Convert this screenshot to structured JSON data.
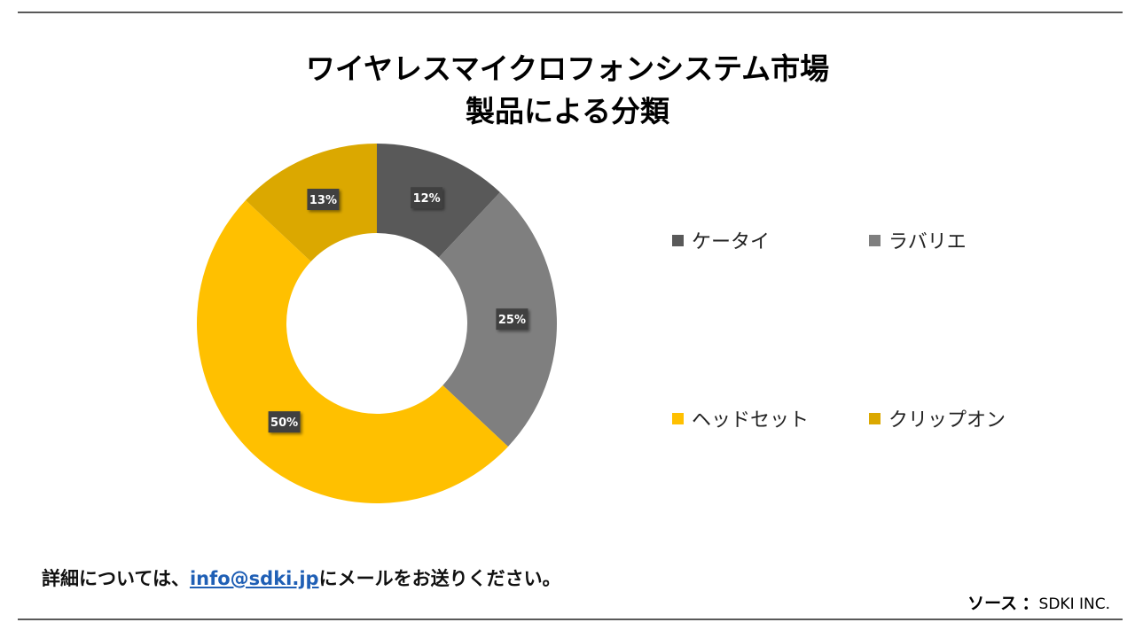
{
  "title": {
    "line1": "ワイヤレスマイクロフォンシステム市場",
    "line2": "製品による分類"
  },
  "chart_data": {
    "type": "pie",
    "donut": true,
    "categories": [
      "ケータイ",
      "ラバリエ",
      "ヘッドセット",
      "クリップオン"
    ],
    "values": [
      12,
      25,
      50,
      13
    ],
    "labels": [
      "12%",
      "25%",
      "50%",
      "13%"
    ],
    "colors": [
      "#595959",
      "#7f7f7f",
      "#ffc000",
      "#dba800"
    ],
    "legend_position": "right",
    "unit": "%"
  },
  "footer": {
    "prefix": "詳細については、",
    "email": "info@sdki.jp",
    "suffix": "にメールをお送りください。"
  },
  "source": {
    "label": "ソース",
    "separator": "：",
    "value": "SDKI INC."
  }
}
